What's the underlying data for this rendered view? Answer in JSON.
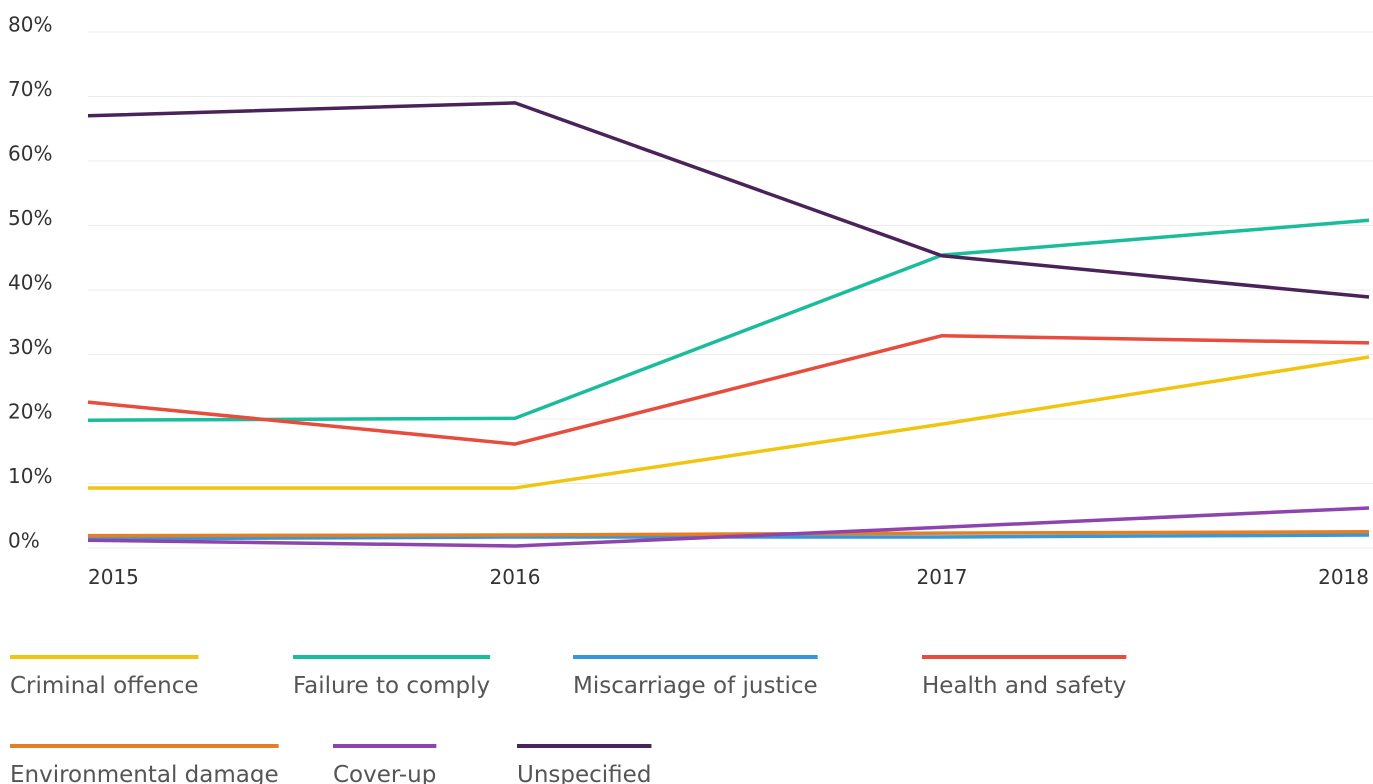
{
  "chart_data": {
    "type": "line",
    "categories": [
      "2015",
      "2016",
      "2017",
      "2018"
    ],
    "ylim": [
      0,
      80
    ],
    "yticks": [
      {
        "value": 0,
        "label": "0%"
      },
      {
        "value": 10,
        "label": "10%"
      },
      {
        "value": 20,
        "label": "20%"
      },
      {
        "value": 30,
        "label": "30%"
      },
      {
        "value": 40,
        "label": "40%"
      },
      {
        "value": 50,
        "label": "50%"
      },
      {
        "value": 60,
        "label": "60%"
      },
      {
        "value": 70,
        "label": "70%"
      },
      {
        "value": 80,
        "label": "80%"
      }
    ],
    "grid": true,
    "legend": "bottom",
    "series": [
      {
        "name": "Criminal offence",
        "color": "#f1c40f",
        "values": [
          9.0,
          9.0,
          18.9,
          29.3
        ]
      },
      {
        "name": "Failure to comply",
        "color": "#1abc9c",
        "values": [
          19.5,
          19.8,
          45.1,
          50.5
        ]
      },
      {
        "name": "Miscarriage of justice",
        "color": "#3498db",
        "values": [
          1.1,
          1.4,
          1.4,
          1.7
        ]
      },
      {
        "name": "Health and safety",
        "color": "#e74c3c",
        "values": [
          22.3,
          15.8,
          32.6,
          31.5
        ]
      },
      {
        "name": "Environmental damage",
        "color": "#e67e22",
        "values": [
          1.6,
          1.7,
          2.0,
          2.2
        ]
      },
      {
        "name": "Cover-up",
        "color": "#8e44ad",
        "values": [
          0.9,
          0.0,
          2.9,
          5.9
        ]
      },
      {
        "name": "Unspecified",
        "color": "#4a235a",
        "values": [
          66.7,
          68.7,
          45.0,
          38.6
        ]
      }
    ]
  }
}
